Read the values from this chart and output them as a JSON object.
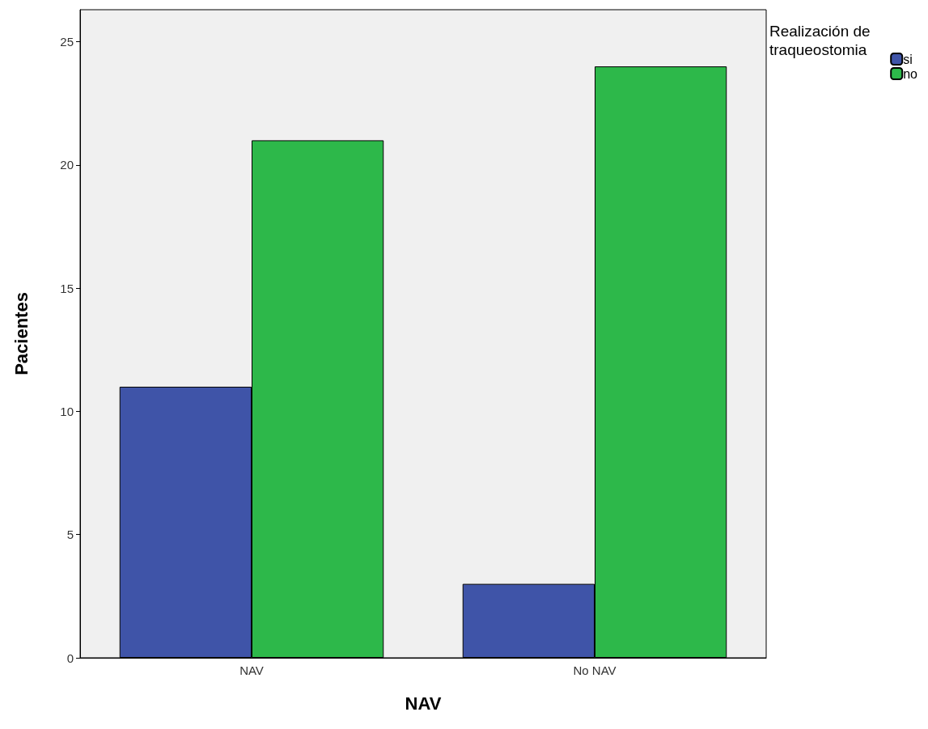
{
  "chart_data": {
    "type": "bar",
    "xlabel": "NAV",
    "ylabel": "Pacientes",
    "legend_title": "Realización de traqueostomia",
    "categories": [
      "NAV",
      "No NAV"
    ],
    "series": [
      {
        "name": "si",
        "color": "#3f54a8",
        "values": [
          11,
          3
        ]
      },
      {
        "name": "no",
        "color": "#2db84a",
        "values": [
          21,
          24
        ]
      }
    ],
    "ylim": [
      0,
      26.3
    ],
    "yticks": [
      0,
      5,
      10,
      15,
      20,
      25
    ],
    "grid": false,
    "legend": "top right"
  }
}
